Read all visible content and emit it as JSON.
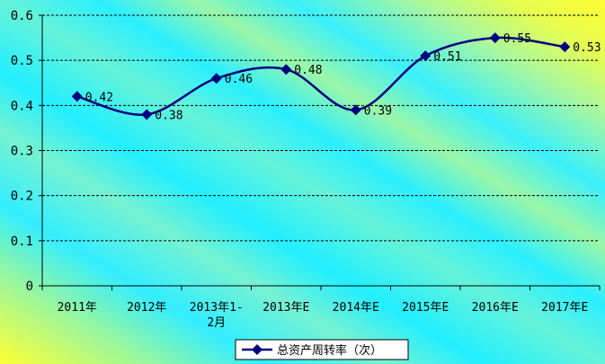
{
  "chart_data": {
    "type": "line",
    "categories": [
      "2011年",
      "2012年",
      "2013年1-2月",
      "2013年E",
      "2014年E",
      "2015年E",
      "2016年E",
      "2017年E"
    ],
    "category_lines": [
      [
        "2011年"
      ],
      [
        "2012年"
      ],
      [
        "2013年1-",
        "2月"
      ],
      [
        "2013年E"
      ],
      [
        "2014年E"
      ],
      [
        "2015年E"
      ],
      [
        "2016年E"
      ],
      [
        "2017年E"
      ]
    ],
    "series": [
      {
        "name": "总资产周转率（次）",
        "values": [
          0.42,
          0.38,
          0.46,
          0.48,
          0.39,
          0.51,
          0.55,
          0.53
        ],
        "labels": [
          "0.42",
          "0.38",
          "0.46",
          "0.48",
          "0.39",
          "0.51",
          "0.55",
          "0.53"
        ],
        "color": "#00007F",
        "marker": "diamond",
        "smooth": true
      }
    ],
    "ylim": [
      0,
      0.6
    ],
    "yticks": [
      0,
      0.1,
      0.2,
      0.3,
      0.4,
      0.5,
      0.6
    ],
    "ytick_labels": [
      "0",
      "0.1",
      "0.2",
      "0.3",
      "0.4",
      "0.5",
      "0.6"
    ],
    "grid": true,
    "legend_position": "bottom-center",
    "colors": {
      "line": "#00007F",
      "grid": "#000000",
      "background_a": "#FFFF33",
      "background_b": "#22F0FF"
    }
  }
}
